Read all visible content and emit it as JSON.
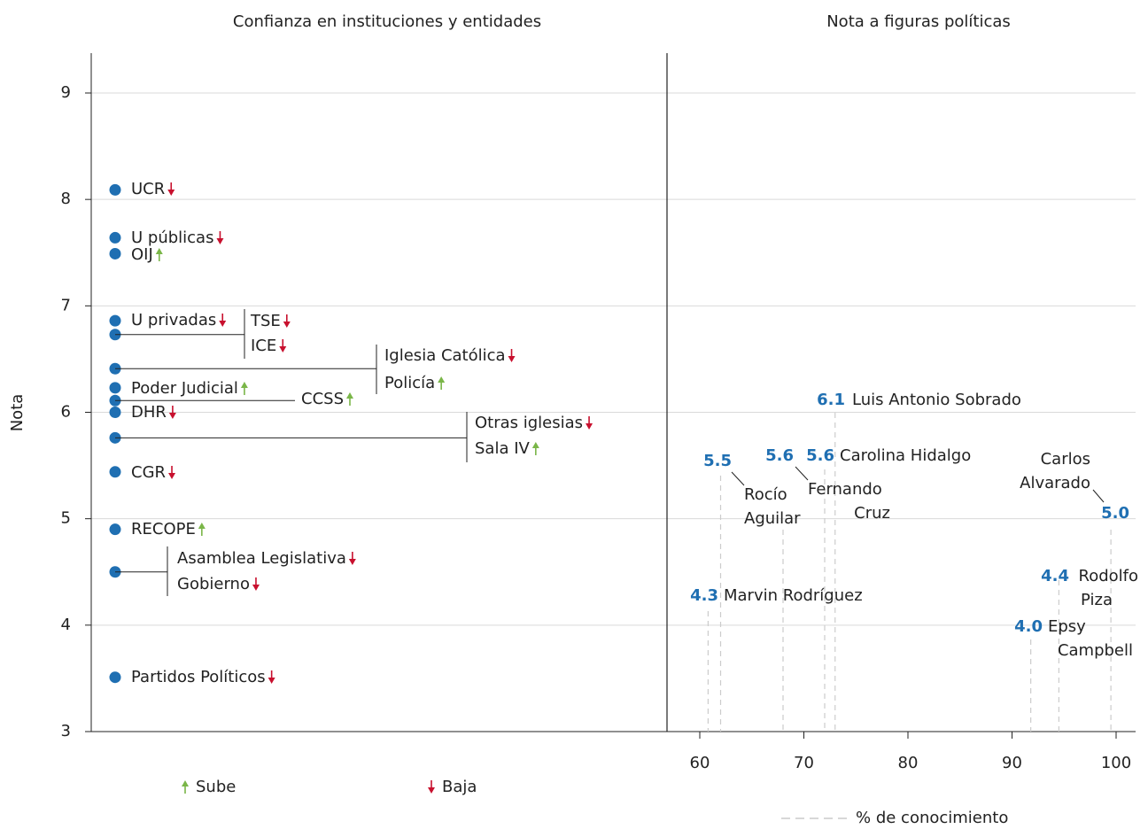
{
  "chart_data": {
    "type": "scatter",
    "ylabel": "Nota",
    "ylim": [
      3,
      9.4
    ],
    "yticks": [
      3,
      4,
      5,
      6,
      7,
      8,
      9
    ],
    "grid": true,
    "left_panel": {
      "title": "Confianza en instituciones y entidades",
      "institutions": [
        {
          "name": "UCR",
          "nota": 8.09,
          "trend": "down"
        },
        {
          "name": "U públicas",
          "nota": 7.64,
          "trend": "down"
        },
        {
          "name": "OIJ",
          "nota": 7.49,
          "trend": "up"
        },
        {
          "name": "U privadas",
          "nota": 6.86,
          "trend": "down"
        },
        {
          "name": "TSE",
          "nota": 6.73,
          "trend": "down"
        },
        {
          "name": "ICE",
          "nota": 6.73,
          "trend": "down"
        },
        {
          "name": "Iglesia Católica",
          "nota": 6.41,
          "trend": "down"
        },
        {
          "name": "Policía",
          "nota": 6.41,
          "trend": "up"
        },
        {
          "name": "Poder Judicial",
          "nota": 6.23,
          "trend": "up"
        },
        {
          "name": "CCSS",
          "nota": 6.11,
          "trend": "up"
        },
        {
          "name": "DHR",
          "nota": 6.0,
          "trend": "down"
        },
        {
          "name": "Otras iglesias",
          "nota": 5.76,
          "trend": "down"
        },
        {
          "name": "Sala IV",
          "nota": 5.76,
          "trend": "up"
        },
        {
          "name": "CGR",
          "nota": 5.44,
          "trend": "down"
        },
        {
          "name": "RECOPE",
          "nota": 4.9,
          "trend": "up"
        },
        {
          "name": "Asamblea Legislativa",
          "nota": 4.5,
          "trend": "down"
        },
        {
          "name": "Gobierno",
          "nota": 4.5,
          "trend": "down"
        },
        {
          "name": "Partidos Políticos",
          "nota": 3.51,
          "trend": "down"
        }
      ],
      "legend": {
        "up": "Sube",
        "down": "Baja"
      }
    },
    "right_panel": {
      "title": "Nota a figuras políticas",
      "xlabel": "% de conocimiento",
      "xlim": [
        57,
        102
      ],
      "xticks": [
        60,
        70,
        80,
        90,
        100
      ],
      "figures": [
        {
          "name": "Luis Antonio Sobrado",
          "nota": 6.1,
          "nota_label": "6.1",
          "conocimiento": 73
        },
        {
          "name": "Rocío Aguilar",
          "nota": 5.5,
          "nota_label": "5.5",
          "conocimiento": 62
        },
        {
          "name": "Fernando Cruz",
          "nota": 5.6,
          "nota_label": "5.6",
          "conocimiento": 68
        },
        {
          "name": "Carolina Hidalgo",
          "nota": 5.6,
          "nota_label": "5.6",
          "conocimiento": 72
        },
        {
          "name": "Carlos Alvarado",
          "nota": 5.0,
          "nota_label": "5.0",
          "conocimiento": 99.5
        },
        {
          "name": "Marvin Rodríguez",
          "nota": 4.3,
          "nota_label": "4.3",
          "conocimiento": 60.8
        },
        {
          "name": "Rodolfo Piza",
          "nota": 4.4,
          "nota_label": "4.4",
          "conocimiento": 94.5
        },
        {
          "name": "Epsy Campbell",
          "nota": 4.0,
          "nota_label": "4.0",
          "conocimiento": 91.8
        }
      ]
    },
    "colors": {
      "dot": "#1f6fb2",
      "value_label": "#1f6fb2",
      "up": "#7ab648",
      "down": "#c8102e",
      "grid": "#d9d9d9",
      "axis": "#222222",
      "text": "#222222",
      "dashed": "#cccccc"
    }
  }
}
